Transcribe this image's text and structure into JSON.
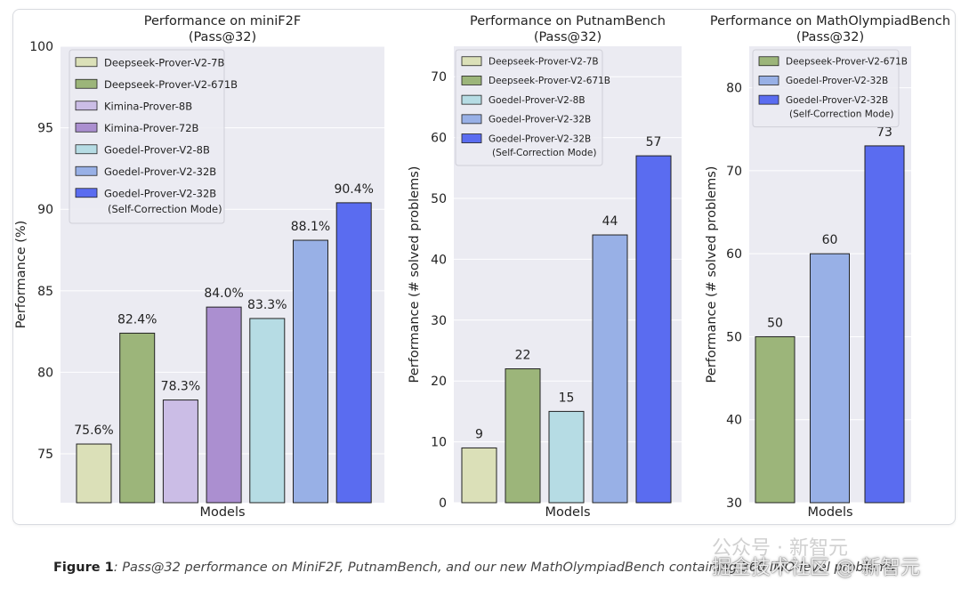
{
  "chart_data": [
    {
      "type": "bar",
      "title": "Performance on miniF2F",
      "subtitle": "(Pass@32)",
      "xlabel": "Models",
      "ylabel": "Performance (%)",
      "ylim": [
        72,
        100
      ],
      "yticks": [
        75,
        80,
        85,
        90,
        95,
        100
      ],
      "grid": true,
      "legend_position": "top-left",
      "value_suffix": "%",
      "value_decimals": 1,
      "categories": [
        "Deepseek-Prover-V2-7B",
        "Deepseek-Prover-V2-671B",
        "Kimina-Prover-8B",
        "Kimina-Prover-72B",
        "Goedel-Prover-V2-8B",
        "Goedel-Prover-V2-32B",
        "Goedel-Prover-V2-32B (Self-Correction Mode)"
      ],
      "legend": [
        {
          "label": "Deepseek-Prover-V2-7B",
          "color": "#dbe0b8"
        },
        {
          "label": "Deepseek-Prover-V2-671B",
          "color": "#9cb57a"
        },
        {
          "label": "Kimina-Prover-8B",
          "color": "#cbbde6"
        },
        {
          "label": "Kimina-Prover-72B",
          "color": "#ab8fd0"
        },
        {
          "label": "Goedel-Prover-V2-8B",
          "color": "#b6dce4"
        },
        {
          "label": "Goedel-Prover-V2-32B",
          "color": "#98b0e6"
        },
        {
          "label": "Goedel-Prover-V2-32B\n(Self-Correction Mode)",
          "color": "#5a6cf0"
        }
      ],
      "values": [
        75.6,
        82.4,
        78.3,
        84.0,
        83.3,
        88.1,
        90.4
      ],
      "colors": [
        "#dbe0b8",
        "#9cb57a",
        "#cbbde6",
        "#ab8fd0",
        "#b6dce4",
        "#98b0e6",
        "#5a6cf0"
      ]
    },
    {
      "type": "bar",
      "title": "Performance on PutnamBench",
      "subtitle": "(Pass@32)",
      "xlabel": "Models",
      "ylabel": "Performance (# solved problems)",
      "ylim": [
        0,
        75
      ],
      "yticks": [
        0,
        10,
        20,
        30,
        40,
        50,
        60,
        70
      ],
      "grid": true,
      "legend_position": "top-left",
      "value_suffix": "",
      "value_decimals": 0,
      "categories": [
        "Deepseek-Prover-V2-7B",
        "Deepseek-Prover-V2-671B",
        "Goedel-Prover-V2-8B",
        "Goedel-Prover-V2-32B",
        "Goedel-Prover-V2-32B (Self-Correction Mode)"
      ],
      "legend": [
        {
          "label": "Deepseek-Prover-V2-7B",
          "color": "#dbe0b8"
        },
        {
          "label": "Deepseek-Prover-V2-671B",
          "color": "#9cb57a"
        },
        {
          "label": "Goedel-Prover-V2-8B",
          "color": "#b6dce4"
        },
        {
          "label": "Goedel-Prover-V2-32B",
          "color": "#98b0e6"
        },
        {
          "label": "Goedel-Prover-V2-32B\n(Self-Correction Mode)",
          "color": "#5a6cf0"
        }
      ],
      "values": [
        9,
        22,
        15,
        44,
        57
      ],
      "colors": [
        "#dbe0b8",
        "#9cb57a",
        "#b6dce4",
        "#98b0e6",
        "#5a6cf0"
      ]
    },
    {
      "type": "bar",
      "title": "Performance on MathOlympiadBench",
      "subtitle": "(Pass@32)",
      "xlabel": "Models",
      "ylabel": "Performance (# solved problems)",
      "ylim": [
        30,
        85
      ],
      "yticks": [
        30,
        40,
        50,
        60,
        70,
        80
      ],
      "grid": true,
      "legend_position": "top-left",
      "value_suffix": "",
      "value_decimals": 0,
      "categories": [
        "Deepseek-Prover-V2-671B",
        "Goedel-Prover-V2-32B",
        "Goedel-Prover-V2-32B (Self-Correction Mode)"
      ],
      "legend": [
        {
          "label": "Deepseek-Prover-V2-671B",
          "color": "#9cb57a"
        },
        {
          "label": "Goedel-Prover-V2-32B",
          "color": "#98b0e6"
        },
        {
          "label": "Goedel-Prover-V2-32B\n(Self-Correction Mode)",
          "color": "#5a6cf0"
        }
      ],
      "values": [
        50,
        60,
        73
      ],
      "colors": [
        "#9cb57a",
        "#98b0e6",
        "#5a6cf0"
      ]
    }
  ],
  "colors": {
    "plot_background": "#ebebf2",
    "grid": "#ffffff",
    "bar_edge": "#222222"
  },
  "caption": {
    "label": "Figure 1",
    "text": ": Pass@32 performance on MiniF2F, PutnamBench, and our new MathOlympiadBench containing 360 IMO-level problems."
  },
  "watermarks": {
    "line1": "公众号 · 新智元",
    "line2": "掘金技术社区 @ 新智元"
  }
}
